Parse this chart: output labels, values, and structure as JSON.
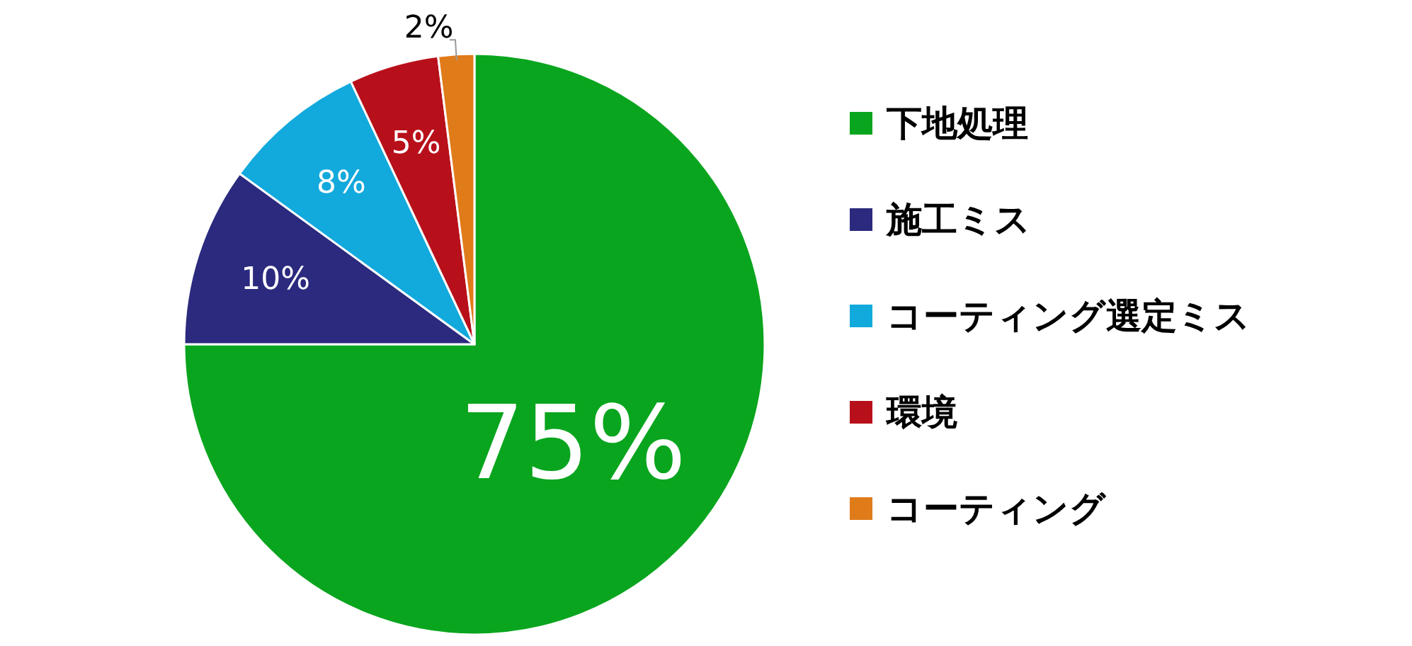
{
  "chart_data": {
    "type": "pie",
    "categories": [
      "下地処理",
      "施工ミス",
      "コーティング選定ミス",
      "環境",
      "コーティング"
    ],
    "values": [
      75,
      10,
      8,
      5,
      2
    ],
    "colors": [
      "#0aa51e",
      "#2b2a7e",
      "#12a9dc",
      "#b8101a",
      "#e07b1a"
    ],
    "value_labels": [
      "75%",
      "10%",
      "8%",
      "5%",
      "2%"
    ],
    "legend": "right"
  }
}
